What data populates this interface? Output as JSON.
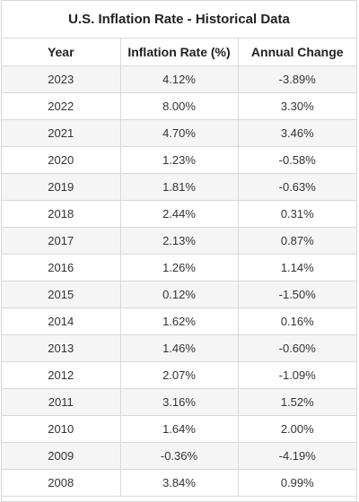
{
  "table": {
    "title": "U.S. Inflation Rate - Historical Data",
    "headers": [
      "Year",
      "Inflation Rate (%)",
      "Annual Change"
    ],
    "rows": [
      [
        "2023",
        "4.12%",
        "-3.89%"
      ],
      [
        "2022",
        "8.00%",
        "3.30%"
      ],
      [
        "2021",
        "4.70%",
        "3.46%"
      ],
      [
        "2020",
        "1.23%",
        "-0.58%"
      ],
      [
        "2019",
        "1.81%",
        "-0.63%"
      ],
      [
        "2018",
        "2.44%",
        "0.31%"
      ],
      [
        "2017",
        "2.13%",
        "0.87%"
      ],
      [
        "2016",
        "1.26%",
        "1.14%"
      ],
      [
        "2015",
        "0.12%",
        "-1.50%"
      ],
      [
        "2014",
        "1.62%",
        "0.16%"
      ],
      [
        "2013",
        "1.46%",
        "-0.60%"
      ],
      [
        "2012",
        "2.07%",
        "-1.09%"
      ],
      [
        "2011",
        "3.16%",
        "1.52%"
      ],
      [
        "2010",
        "1.64%",
        "2.00%"
      ],
      [
        "2009",
        "-0.36%",
        "-4.19%"
      ],
      [
        "2008",
        "3.84%",
        "0.99%"
      ]
    ]
  }
}
